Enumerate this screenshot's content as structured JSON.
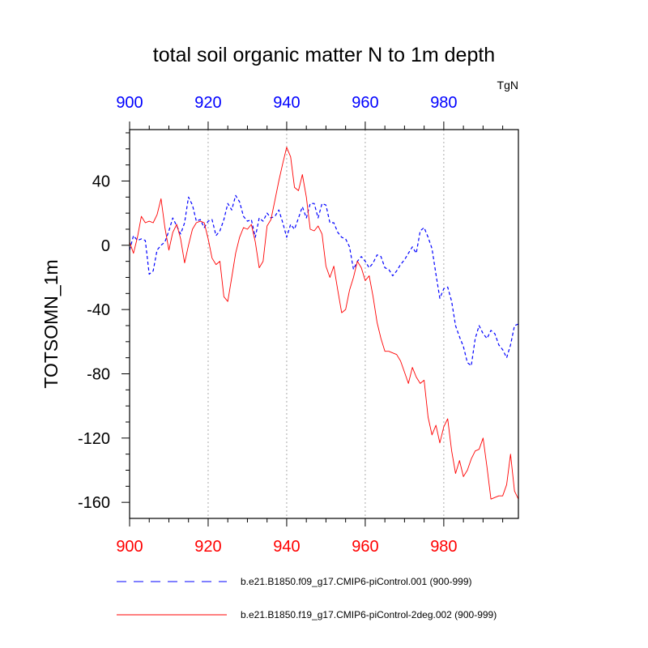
{
  "chart_data": {
    "type": "line",
    "title": "total soil organic matter N to 1m depth",
    "units": "TgN",
    "ylabel": "TOTSOMN_1m",
    "xlabel": "",
    "xlim": [
      900,
      999
    ],
    "ylim": [
      -170,
      72
    ],
    "x_ticks": [
      900,
      920,
      940,
      960,
      980
    ],
    "x_tick_labels": [
      "900",
      "920",
      "940",
      "960",
      "980"
    ],
    "y_ticks": [
      40,
      0,
      -40,
      -80,
      -120,
      -160
    ],
    "y_tick_labels": [
      "40",
      "0",
      "-40",
      "-80",
      "-120",
      "-160"
    ],
    "grid": "vertical dotted at major x ticks",
    "colors": {
      "series_blue": "#0000ff",
      "series_red": "#ff0000",
      "top_axis_labels": "#0000ff",
      "bottom_axis_labels": "#ff0000",
      "grid": "#aaaaaa"
    },
    "series": [
      {
        "name": "b.e21.B1850.f09_g17.CMIP6-piControl.001 (900-999)",
        "style": "dashed",
        "color": "#0000ff",
        "x": [
          900,
          901,
          902,
          903,
          904,
          905,
          906,
          907,
          908,
          909,
          910,
          911,
          912,
          913,
          914,
          915,
          916,
          917,
          918,
          919,
          920,
          921,
          922,
          923,
          924,
          925,
          926,
          927,
          928,
          929,
          930,
          931,
          932,
          933,
          934,
          935,
          936,
          937,
          938,
          939,
          940,
          941,
          942,
          943,
          944,
          945,
          946,
          947,
          948,
          949,
          950,
          951,
          952,
          953,
          954,
          955,
          956,
          957,
          958,
          959,
          960,
          961,
          962,
          963,
          964,
          965,
          966,
          967,
          968,
          969,
          970,
          971,
          972,
          973,
          974,
          975,
          976,
          977,
          978,
          979,
          980,
          981,
          982,
          983,
          984,
          985,
          986,
          987,
          988,
          989,
          990,
          991,
          992,
          993,
          994,
          995,
          996,
          997,
          998,
          999
        ],
        "values": [
          -3,
          6,
          3,
          4,
          3,
          -18,
          -16,
          -3,
          0,
          2,
          9,
          17,
          12,
          7,
          14,
          30,
          25,
          15,
          16,
          11,
          15,
          16,
          6,
          9,
          16,
          26,
          22,
          31,
          27,
          18,
          15,
          16,
          5,
          17,
          15,
          20,
          17,
          18,
          22,
          14,
          5,
          13,
          10,
          17,
          24,
          17,
          26,
          26,
          17,
          26,
          25,
          14,
          14,
          8,
          5,
          4,
          -1,
          -15,
          -10,
          -7,
          -10,
          -14,
          -11,
          -6,
          -7,
          -14,
          -15,
          -19,
          -16,
          -12,
          -9,
          -5,
          -1,
          -5,
          9,
          11,
          5,
          -2,
          -18,
          -33,
          -27,
          -26,
          -35,
          -50,
          -57,
          -63,
          -73,
          -75,
          -58,
          -50,
          -55,
          -58,
          -53,
          -55,
          -62,
          -65,
          -70,
          -62,
          -50,
          -49
        ]
      },
      {
        "name": "b.e21.B1850.f19_g17.CMIP6-piControl-2deg.002 (900-999)",
        "style": "solid",
        "color": "#ff0000",
        "x": [
          900,
          901,
          902,
          903,
          904,
          905,
          906,
          907,
          908,
          909,
          910,
          911,
          912,
          913,
          914,
          915,
          916,
          917,
          918,
          919,
          920,
          921,
          922,
          923,
          924,
          925,
          926,
          927,
          928,
          929,
          930,
          931,
          932,
          933,
          934,
          935,
          936,
          937,
          938,
          939,
          940,
          941,
          942,
          943,
          944,
          945,
          946,
          947,
          948,
          949,
          950,
          951,
          952,
          953,
          954,
          955,
          956,
          957,
          958,
          959,
          960,
          961,
          962,
          963,
          964,
          965,
          966,
          967,
          968,
          969,
          970,
          971,
          972,
          973,
          974,
          975,
          976,
          977,
          978,
          979,
          980,
          981,
          982,
          983,
          984,
          985,
          986,
          987,
          988,
          989,
          990,
          991,
          992,
          993,
          994,
          995,
          996,
          997,
          998,
          999
        ],
        "values": [
          2,
          -5,
          5,
          18,
          14,
          15,
          14,
          19,
          29,
          11,
          -3,
          8,
          13,
          4,
          -11,
          0,
          10,
          14,
          15,
          14,
          4,
          -8,
          -12,
          -10,
          -32,
          -35,
          -20,
          -5,
          5,
          11,
          10,
          13,
          2,
          -14,
          -10,
          12,
          16,
          28,
          40,
          51,
          61,
          55,
          36,
          34,
          44,
          30,
          10,
          9,
          12,
          7,
          -13,
          -20,
          -13,
          -28,
          -42,
          -40,
          -28,
          -20,
          -10,
          -14,
          -22,
          -19,
          -32,
          -48,
          -58,
          -66,
          -66,
          -67,
          -68,
          -72,
          -79,
          -86,
          -76,
          -82,
          -86,
          -84,
          -107,
          -118,
          -112,
          -123,
          -113,
          -108,
          -128,
          -142,
          -134,
          -144,
          -140,
          -133,
          -128,
          -127,
          -120,
          -138,
          -158,
          -157,
          -156,
          -156,
          -149,
          -130,
          -153,
          -158
        ]
      }
    ]
  }
}
